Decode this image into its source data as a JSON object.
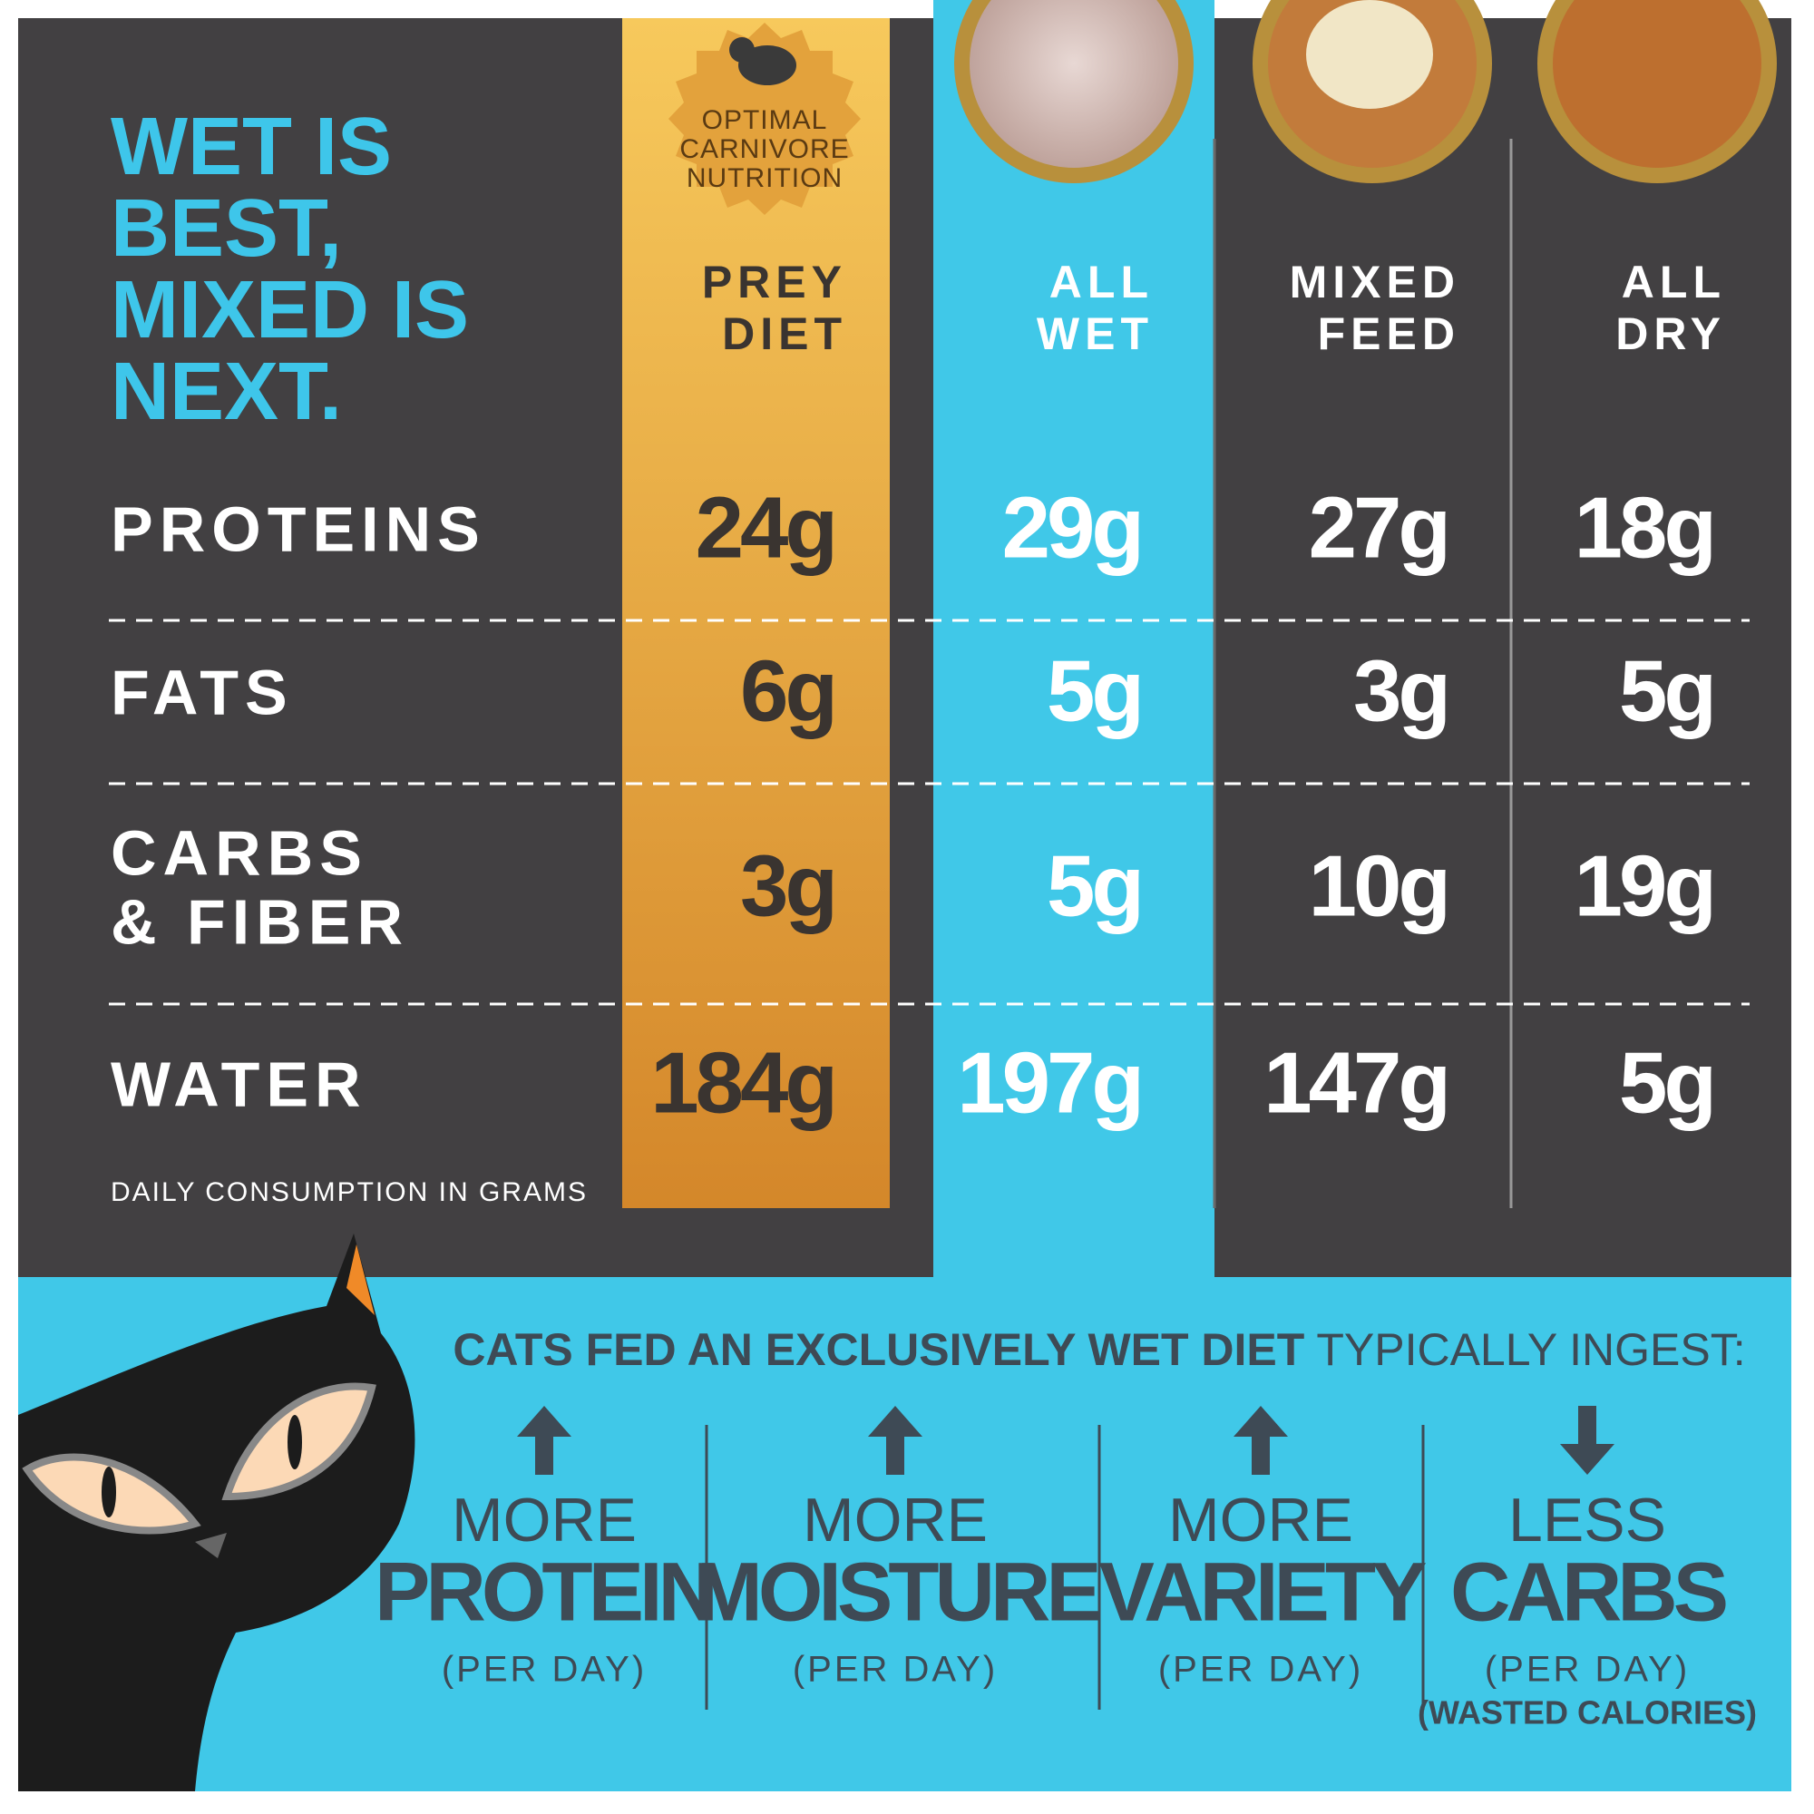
{
  "header": {
    "title": [
      "WET IS",
      "BEST,",
      "MIXED IS",
      "NEXT."
    ]
  },
  "badge": [
    "OPTIMAL",
    "CARNIVORE",
    "NUTRITION"
  ],
  "table": {
    "columns": [
      [
        "PREY",
        "DIET"
      ],
      [
        "ALL",
        "WET"
      ],
      [
        "MIXED",
        "FEED"
      ],
      [
        "ALL",
        "DRY"
      ]
    ],
    "rows": [
      {
        "label": [
          "PROTEINS"
        ],
        "cells": [
          "24g",
          "29g",
          "27g",
          "18g"
        ]
      },
      {
        "label": [
          "FATS"
        ],
        "cells": [
          "6g",
          "5g",
          "3g",
          "5g"
        ]
      },
      {
        "label": [
          "CARBS",
          "& FIBER"
        ],
        "cells": [
          "3g",
          "5g",
          "10g",
          "19g"
        ]
      },
      {
        "label": [
          "WATER"
        ],
        "cells": [
          "184g",
          "197g",
          "147g",
          "5g"
        ]
      }
    ],
    "note": "DAILY CONSUMPTION IN GRAMS"
  },
  "footer": {
    "headline_bold": "CATS FED AN EXCLUSIVELY WET DIET",
    "headline_rest": "TYPICALLY INGEST:",
    "items": [
      {
        "top": "MORE",
        "main": "PROTEIN",
        "sub": "(PER DAY)"
      },
      {
        "top": "MORE",
        "main": "MOISTURE",
        "sub": "(PER DAY)"
      },
      {
        "top": "MORE",
        "main": "VARIETY",
        "sub": "(PER DAY)"
      },
      {
        "top": "LESS",
        "main": "CARBS",
        "sub": "(PER DAY)",
        "note": "(WASTED CALORIES)"
      }
    ]
  }
}
